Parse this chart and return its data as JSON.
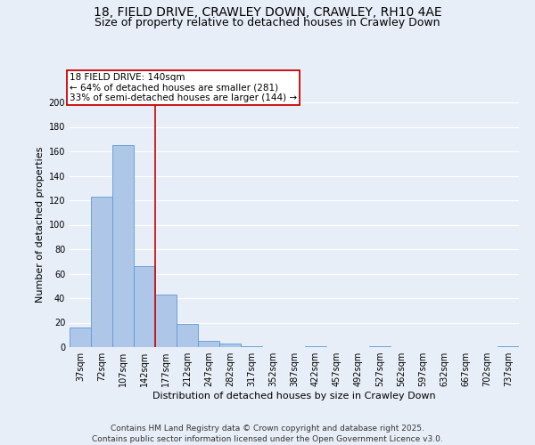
{
  "title_line1": "18, FIELD DRIVE, CRAWLEY DOWN, CRAWLEY, RH10 4AE",
  "title_line2": "Size of property relative to detached houses in Crawley Down",
  "xlabel": "Distribution of detached houses by size in Crawley Down",
  "ylabel": "Number of detached properties",
  "bar_labels": [
    "37sqm",
    "72sqm",
    "107sqm",
    "142sqm",
    "177sqm",
    "212sqm",
    "247sqm",
    "282sqm",
    "317sqm",
    "352sqm",
    "387sqm",
    "422sqm",
    "457sqm",
    "492sqm",
    "527sqm",
    "562sqm",
    "597sqm",
    "632sqm",
    "667sqm",
    "702sqm",
    "737sqm"
  ],
  "bar_values": [
    16,
    123,
    165,
    66,
    43,
    19,
    5,
    3,
    1,
    0,
    0,
    1,
    0,
    0,
    1,
    0,
    0,
    0,
    0,
    0,
    1
  ],
  "bar_color": "#aec6e8",
  "bar_edge_color": "#5b9bd5",
  "property_line_x": 3.5,
  "annotation_title": "18 FIELD DRIVE: 140sqm",
  "annotation_line2": "← 64% of detached houses are smaller (281)",
  "annotation_line3": "33% of semi-detached houses are larger (144) →",
  "annotation_box_color": "#ffffff",
  "annotation_box_edge": "#cc0000",
  "vline_color": "#cc0000",
  "ylim": [
    0,
    200
  ],
  "yticks": [
    0,
    20,
    40,
    60,
    80,
    100,
    120,
    140,
    160,
    180,
    200
  ],
  "background_color": "#e8eef8",
  "grid_color": "#ffffff",
  "footer": "Contains HM Land Registry data © Crown copyright and database right 2025.\nContains public sector information licensed under the Open Government Licence v3.0.",
  "title_fontsize": 10,
  "subtitle_fontsize": 9,
  "axis_label_fontsize": 8,
  "tick_fontsize": 7,
  "annotation_fontsize": 7.5,
  "footer_fontsize": 6.5
}
